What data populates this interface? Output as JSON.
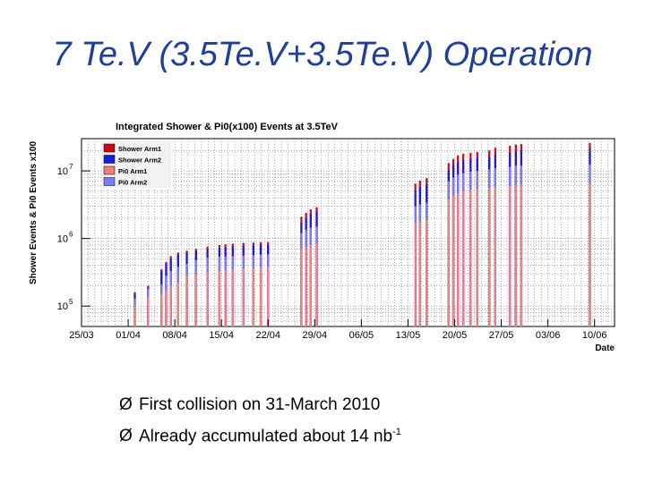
{
  "slide": {
    "title": "7 Te.V (3.5Te.V+3.5Te.V) Operation",
    "bullet_marker": "Ø",
    "bullets": [
      {
        "text": "First collision on 31-March 2010",
        "sup": ""
      },
      {
        "text": "Already accumulated  about 14 nb",
        "sup": "-1"
      }
    ]
  },
  "colors": {
    "shower_arm1": "#c80b1a",
    "shower_arm2": "#1a1adf",
    "pi0_arm1": "#f08080",
    "pi0_arm2": "#7d7cf0"
  },
  "chart_data": {
    "type": "bar",
    "title": "Integrated Shower & Pi0(x100) Events at 3.5TeV",
    "xlabel": "Date",
    "ylabel": "Shower Events & Pi0 Events x100",
    "yscale": "log",
    "ylim": [
      50000,
      30000000
    ],
    "xlim": [
      0,
      80
    ],
    "grid": true,
    "x_ticks": [
      {
        "day": 0,
        "label": "25/03"
      },
      {
        "day": 7,
        "label": "01/04"
      },
      {
        "day": 14,
        "label": "08/04"
      },
      {
        "day": 21,
        "label": "15/04"
      },
      {
        "day": 28,
        "label": "22/04"
      },
      {
        "day": 35,
        "label": "29/04"
      },
      {
        "day": 42,
        "label": "06/05"
      },
      {
        "day": 49,
        "label": "13/05"
      },
      {
        "day": 56,
        "label": "20/05"
      },
      {
        "day": 63,
        "label": "27/05"
      },
      {
        "day": 70,
        "label": "03/06"
      },
      {
        "day": 77,
        "label": "10/06"
      }
    ],
    "y_ticks": [
      {
        "value": 100000,
        "base": "10",
        "exp": "5"
      },
      {
        "value": 1000000,
        "base": "10",
        "exp": "6"
      },
      {
        "value": 10000000,
        "base": "10",
        "exp": "7"
      }
    ],
    "legend": {
      "position": "top-left",
      "entries": [
        {
          "name": "Shower Arm1",
          "color_key": "shower_arm1"
        },
        {
          "name": "Shower Arm2",
          "color_key": "shower_arm2"
        },
        {
          "name": "Pi0 Arm1",
          "color_key": "pi0_arm1"
        },
        {
          "name": "Pi0 Arm2",
          "color_key": "pi0_arm2"
        }
      ]
    },
    "series_note": "Integrated event counts; stacked bars per fill, from bottom: Pi0 Arm1, Pi0 Arm2, Shower Arm2, Shower Arm1 (cumulative levels)",
    "bars": [
      {
        "day": 8.0,
        "pi0_arm1": 100000,
        "pi0_arm2": 130000,
        "shower_arm2": 150000,
        "shower_arm1": 160000
      },
      {
        "day": 10.0,
        "pi0_arm1": 140000,
        "pi0_arm2": 180000,
        "shower_arm2": 190000,
        "shower_arm1": 200000
      },
      {
        "day": 12.0,
        "pi0_arm1": 150000,
        "pi0_arm2": 210000,
        "shower_arm2": 330000,
        "shower_arm1": 350000
      },
      {
        "day": 12.7,
        "pi0_arm1": 170000,
        "pi0_arm2": 280000,
        "shower_arm2": 420000,
        "shower_arm1": 450000
      },
      {
        "day": 13.4,
        "pi0_arm1": 200000,
        "pi0_arm2": 330000,
        "shower_arm2": 500000,
        "shower_arm1": 550000
      },
      {
        "day": 14.5,
        "pi0_arm1": 220000,
        "pi0_arm2": 380000,
        "shower_arm2": 580000,
        "shower_arm1": 620000
      },
      {
        "day": 15.8,
        "pi0_arm1": 280000,
        "pi0_arm2": 420000,
        "shower_arm2": 620000,
        "shower_arm1": 660000
      },
      {
        "day": 17.2,
        "pi0_arm1": 300000,
        "pi0_arm2": 480000,
        "shower_arm2": 660000,
        "shower_arm1": 700000
      },
      {
        "day": 18.9,
        "pi0_arm1": 320000,
        "pi0_arm2": 520000,
        "shower_arm2": 690000,
        "shower_arm1": 760000
      },
      {
        "day": 20.7,
        "pi0_arm1": 330000,
        "pi0_arm2": 540000,
        "shower_arm2": 720000,
        "shower_arm1": 800000
      },
      {
        "day": 21.6,
        "pi0_arm1": 340000,
        "pi0_arm2": 540000,
        "shower_arm2": 740000,
        "shower_arm1": 820000
      },
      {
        "day": 22.7,
        "pi0_arm1": 350000,
        "pi0_arm2": 550000,
        "shower_arm2": 760000,
        "shower_arm1": 840000
      },
      {
        "day": 24.3,
        "pi0_arm1": 360000,
        "pi0_arm2": 560000,
        "shower_arm2": 780000,
        "shower_arm1": 860000
      },
      {
        "day": 25.8,
        "pi0_arm1": 370000,
        "pi0_arm2": 570000,
        "shower_arm2": 790000,
        "shower_arm1": 870000
      },
      {
        "day": 26.9,
        "pi0_arm1": 370000,
        "pi0_arm2": 580000,
        "shower_arm2": 800000,
        "shower_arm1": 880000
      },
      {
        "day": 28.0,
        "pi0_arm1": 380000,
        "pi0_arm2": 580000,
        "shower_arm2": 800000,
        "shower_arm1": 880000
      },
      {
        "day": 33.0,
        "pi0_arm1": 700000,
        "pi0_arm2": 1200000,
        "shower_arm2": 1700000,
        "shower_arm1": 2100000
      },
      {
        "day": 33.7,
        "pi0_arm1": 750000,
        "pi0_arm2": 1350000,
        "shower_arm2": 2000000,
        "shower_arm1": 2400000
      },
      {
        "day": 34.4,
        "pi0_arm1": 800000,
        "pi0_arm2": 1450000,
        "shower_arm2": 2300000,
        "shower_arm1": 2700000
      },
      {
        "day": 35.3,
        "pi0_arm1": 850000,
        "pi0_arm2": 1500000,
        "shower_arm2": 2500000,
        "shower_arm1": 2900000
      },
      {
        "day": 50.1,
        "pi0_arm1": 1700000,
        "pi0_arm2": 3000000,
        "shower_arm2": 5200000,
        "shower_arm1": 6500000
      },
      {
        "day": 50.8,
        "pi0_arm1": 1800000,
        "pi0_arm2": 3200000,
        "shower_arm2": 5800000,
        "shower_arm1": 7200000
      },
      {
        "day": 51.8,
        "pi0_arm1": 1900000,
        "pi0_arm2": 3400000,
        "shower_arm2": 6300000,
        "shower_arm1": 7800000
      },
      {
        "day": 55.1,
        "pi0_arm1": 3800000,
        "pi0_arm2": 7000000,
        "shower_arm2": 10000000,
        "shower_arm1": 13000000
      },
      {
        "day": 55.8,
        "pi0_arm1": 4300000,
        "pi0_arm2": 8000000,
        "shower_arm2": 12000000,
        "shower_arm1": 15000000
      },
      {
        "day": 56.5,
        "pi0_arm1": 4700000,
        "pi0_arm2": 8800000,
        "shower_arm2": 13500000,
        "shower_arm1": 17000000
      },
      {
        "day": 57.3,
        "pi0_arm1": 5000000,
        "pi0_arm2": 9200000,
        "shower_arm2": 14500000,
        "shower_arm1": 18000000
      },
      {
        "day": 58.4,
        "pi0_arm1": 5300000,
        "pi0_arm2": 9800000,
        "shower_arm2": 15000000,
        "shower_arm1": 18500000
      },
      {
        "day": 59.4,
        "pi0_arm1": 5400000,
        "pi0_arm2": 10000000,
        "shower_arm2": 15500000,
        "shower_arm1": 19000000
      },
      {
        "day": 61.2,
        "pi0_arm1": 5600000,
        "pi0_arm2": 10500000,
        "shower_arm2": 16000000,
        "shower_arm1": 20000000
      },
      {
        "day": 62.1,
        "pi0_arm1": 5800000,
        "pi0_arm2": 11000000,
        "shower_arm2": 17000000,
        "shower_arm1": 22000000
      },
      {
        "day": 64.3,
        "pi0_arm1": 6000000,
        "pi0_arm2": 11500000,
        "shower_arm2": 18500000,
        "shower_arm1": 23500000
      },
      {
        "day": 65.2,
        "pi0_arm1": 6200000,
        "pi0_arm2": 12000000,
        "shower_arm2": 19500000,
        "shower_arm1": 24500000
      },
      {
        "day": 66.0,
        "pi0_arm1": 6300000,
        "pi0_arm2": 12000000,
        "shower_arm2": 20000000,
        "shower_arm1": 25000000
      },
      {
        "day": 76.3,
        "pi0_arm1": 6500000,
        "pi0_arm2": 12500000,
        "shower_arm2": 21000000,
        "shower_arm1": 26000000
      }
    ]
  }
}
